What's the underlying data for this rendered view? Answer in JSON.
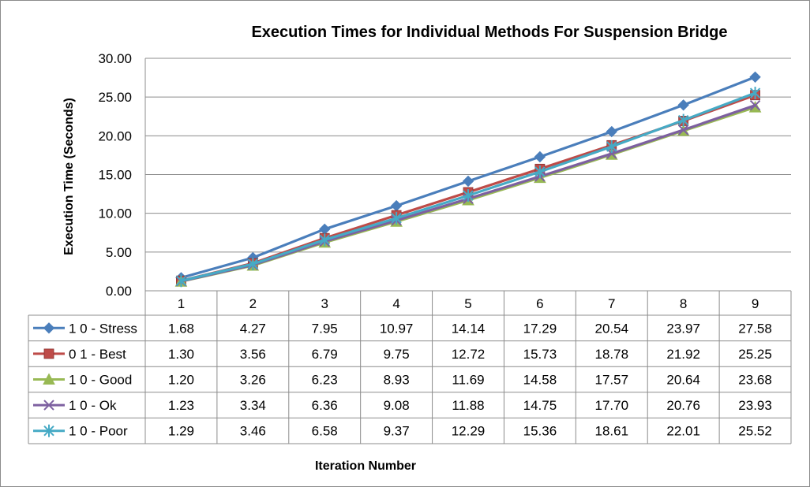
{
  "chart_data": {
    "type": "line",
    "title": "Execution Times for Individual Methods For Suspension Bridge",
    "xlabel": "Iteration Number",
    "ylabel": "Execution Time (Seconds)",
    "ylim": [
      0,
      30
    ],
    "yticks": [
      "0.00",
      "5.00",
      "10.00",
      "15.00",
      "20.00",
      "25.00",
      "30.00"
    ],
    "grid": true,
    "legend_placement": "data-table-left",
    "categories": [
      "1",
      "2",
      "3",
      "4",
      "5",
      "6",
      "7",
      "8",
      "9"
    ],
    "series": [
      {
        "name": "1 0 - Stress",
        "color": "#4a7ebb",
        "marker": "diamond",
        "values": [
          1.68,
          4.27,
          7.95,
          10.97,
          14.14,
          17.29,
          20.54,
          23.97,
          27.58
        ],
        "labels": [
          "1.68",
          "4.27",
          "7.95",
          "10.97",
          "14.14",
          "17.29",
          "20.54",
          "23.97",
          "27.58"
        ]
      },
      {
        "name": "0 1 - Best",
        "color": "#be4b48",
        "marker": "square",
        "values": [
          1.3,
          3.56,
          6.79,
          9.75,
          12.72,
          15.73,
          18.78,
          21.92,
          25.25
        ],
        "labels": [
          "1.30",
          "3.56",
          "6.79",
          "9.75",
          "12.72",
          "15.73",
          "18.78",
          "21.92",
          "25.25"
        ]
      },
      {
        "name": "1 0 - Good",
        "color": "#98b954",
        "marker": "triangle",
        "values": [
          1.2,
          3.26,
          6.23,
          8.93,
          11.69,
          14.58,
          17.57,
          20.64,
          23.68
        ],
        "labels": [
          "1.20",
          "3.26",
          "6.23",
          "8.93",
          "11.69",
          "14.58",
          "17.57",
          "20.64",
          "23.68"
        ]
      },
      {
        "name": "1 0 - Ok",
        "color": "#7d60a0",
        "marker": "x",
        "values": [
          1.23,
          3.34,
          6.36,
          9.08,
          11.88,
          14.75,
          17.7,
          20.76,
          23.93
        ],
        "labels": [
          "1.23",
          "3.34",
          "6.36",
          "9.08",
          "11.88",
          "14.75",
          "17.70",
          "20.76",
          "23.93"
        ]
      },
      {
        "name": "1 0 - Poor",
        "color": "#46aac5",
        "marker": "star",
        "values": [
          1.29,
          3.46,
          6.58,
          9.37,
          12.29,
          15.36,
          18.61,
          22.01,
          25.52
        ],
        "labels": [
          "1.29",
          "3.46",
          "6.58",
          "9.37",
          "12.29",
          "15.36",
          "18.61",
          "22.01",
          "25.52"
        ]
      }
    ]
  }
}
